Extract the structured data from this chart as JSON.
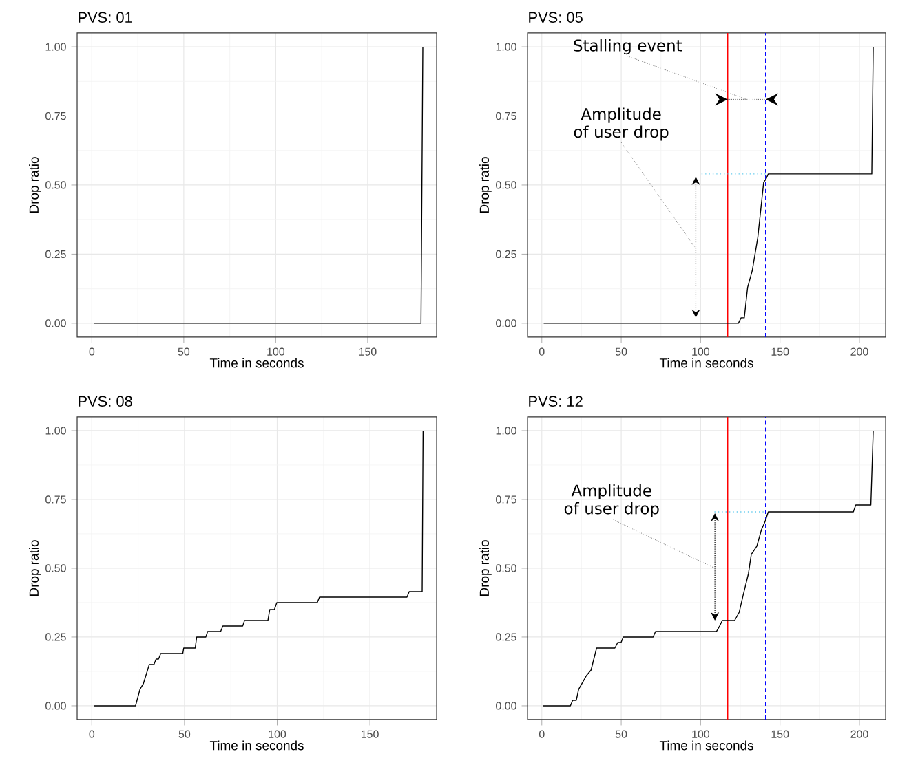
{
  "chart_data": [
    {
      "type": "line",
      "title": "PVS: 01",
      "xlabel": "Time in seconds",
      "ylabel": "Drop ratio",
      "xlim": [
        -8,
        187.5
      ],
      "ylim": [
        -0.05,
        1.05
      ],
      "xticks": [
        0,
        50,
        100,
        150
      ],
      "yticks": [
        {
          "value": 0,
          "label": "0.00"
        },
        {
          "value": 0.25,
          "label": "0.25"
        },
        {
          "value": 0.5,
          "label": "0.50"
        },
        {
          "value": 0.75,
          "label": "0.75"
        },
        {
          "value": 1,
          "label": "1.00"
        }
      ],
      "grid": true,
      "series": [
        {
          "color": "#000000",
          "x": [
            1.2,
            179,
            180
          ],
          "values": [
            0,
            0,
            1.0
          ]
        }
      ]
    },
    {
      "type": "line",
      "title": "PVS: 05",
      "xlabel": "Time in seconds",
      "ylabel": "Drop ratio",
      "xlim": [
        -9,
        216.5
      ],
      "ylim": [
        -0.05,
        1.05
      ],
      "xticks": [
        0,
        50,
        100,
        150,
        200
      ],
      "yticks": [
        {
          "value": 0,
          "label": "0.00"
        },
        {
          "value": 0.25,
          "label": "0.25"
        },
        {
          "value": 0.5,
          "label": "0.50"
        },
        {
          "value": 0.75,
          "label": "0.75"
        },
        {
          "value": 1,
          "label": "1.00"
        }
      ],
      "grid": true,
      "series": [
        {
          "color": "#000000",
          "x": [
            1.2,
            123.8,
            125.5,
            127.5,
            129.6,
            132.5,
            136,
            139.7,
            141,
            142.6,
            207.8,
            208.7
          ],
          "values": [
            0,
            0,
            0.02,
            0.02,
            0.13,
            0.19,
            0.31,
            0.51,
            0.52,
            0.54,
            0.54,
            1.0
          ]
        },
        {
          "color": "#66ccee",
          "line_style": "dotted",
          "x": [
            100.6,
            141
          ],
          "values": [
            0.54,
            0.54
          ]
        }
      ],
      "ref_lines": [
        {
          "axis": "x",
          "value": 117,
          "color": "#ff0000"
        },
        {
          "axis": "x",
          "value": 141,
          "color": "#0000ff",
          "line_style": "dashed"
        }
      ],
      "annotations": [
        "Stalling event",
        "Amplitude of user drop"
      ]
    },
    {
      "type": "line",
      "title": "PVS: 08",
      "xlabel": "Time in seconds",
      "ylabel": "Drop ratio",
      "xlim": [
        -7.9,
        186
      ],
      "ylim": [
        -0.05,
        1.05
      ],
      "xticks": [
        0,
        50,
        100,
        150
      ],
      "yticks": [
        {
          "value": 0,
          "label": "0.00"
        },
        {
          "value": 0.25,
          "label": "0.25"
        },
        {
          "value": 0.5,
          "label": "0.50"
        },
        {
          "value": 0.75,
          "label": "0.75"
        },
        {
          "value": 1,
          "label": "1.00"
        }
      ],
      "grid": true,
      "series": [
        {
          "color": "#000000",
          "x": [
            1.2,
            23.6,
            26,
            27.8,
            31,
            33.5,
            34.7,
            36,
            37.2,
            49.1,
            49.6,
            55.8,
            56.6,
            61.5,
            62.5,
            69.5,
            70.7,
            81.4,
            82.4,
            95,
            96,
            98.5,
            99.8,
            121.6,
            122.8,
            170,
            171.2,
            178.2,
            178.7
          ],
          "values": [
            0,
            0,
            0.06,
            0.08,
            0.15,
            0.15,
            0.17,
            0.17,
            0.19,
            0.19,
            0.21,
            0.21,
            0.25,
            0.25,
            0.27,
            0.27,
            0.29,
            0.29,
            0.31,
            0.31,
            0.35,
            0.35,
            0.375,
            0.375,
            0.395,
            0.395,
            0.415,
            0.415,
            1.0
          ]
        }
      ]
    },
    {
      "type": "line",
      "title": "PVS: 12",
      "xlabel": "Time in seconds",
      "ylabel": "Drop ratio",
      "xlim": [
        -9,
        216.5
      ],
      "ylim": [
        -0.05,
        1.05
      ],
      "xticks": [
        0,
        50,
        100,
        150,
        200
      ],
      "yticks": [
        {
          "value": 0,
          "label": "0.00"
        },
        {
          "value": 0.25,
          "label": "0.25"
        },
        {
          "value": 0.5,
          "label": "0.50"
        },
        {
          "value": 0.75,
          "label": "0.75"
        },
        {
          "value": 1,
          "label": "1.00"
        }
      ],
      "grid": true,
      "series": [
        {
          "color": "#000000",
          "x": [
            0.6,
            18,
            19.4,
            21.7,
            23.2,
            25.2,
            28.1,
            31,
            34.5,
            46,
            47.8,
            49.9,
            51.3,
            70.1,
            71.6,
            110,
            112,
            113.6,
            121.4,
            124.3,
            126.7,
            130.1,
            131.9,
            135.4,
            138.3,
            140.6,
            142.6,
            196.2,
            197.7,
            207.2,
            208.7
          ],
          "values": [
            0,
            0,
            0.02,
            0.02,
            0.06,
            0.08,
            0.11,
            0.13,
            0.21,
            0.21,
            0.23,
            0.23,
            0.25,
            0.25,
            0.27,
            0.27,
            0.29,
            0.31,
            0.31,
            0.34,
            0.4,
            0.48,
            0.55,
            0.58,
            0.64,
            0.67,
            0.705,
            0.705,
            0.73,
            0.73,
            1.0
          ]
        },
        {
          "color": "#66ccee",
          "line_style": "dotted",
          "x": [
            108.7,
            141
          ],
          "values": [
            0.705,
            0.705
          ]
        }
      ],
      "ref_lines": [
        {
          "axis": "x",
          "value": 117,
          "color": "#ff0000"
        },
        {
          "axis": "x",
          "value": 141,
          "color": "#0000ff",
          "line_style": "dashed"
        }
      ],
      "annotations": [
        "Amplitude of user drop"
      ]
    }
  ]
}
